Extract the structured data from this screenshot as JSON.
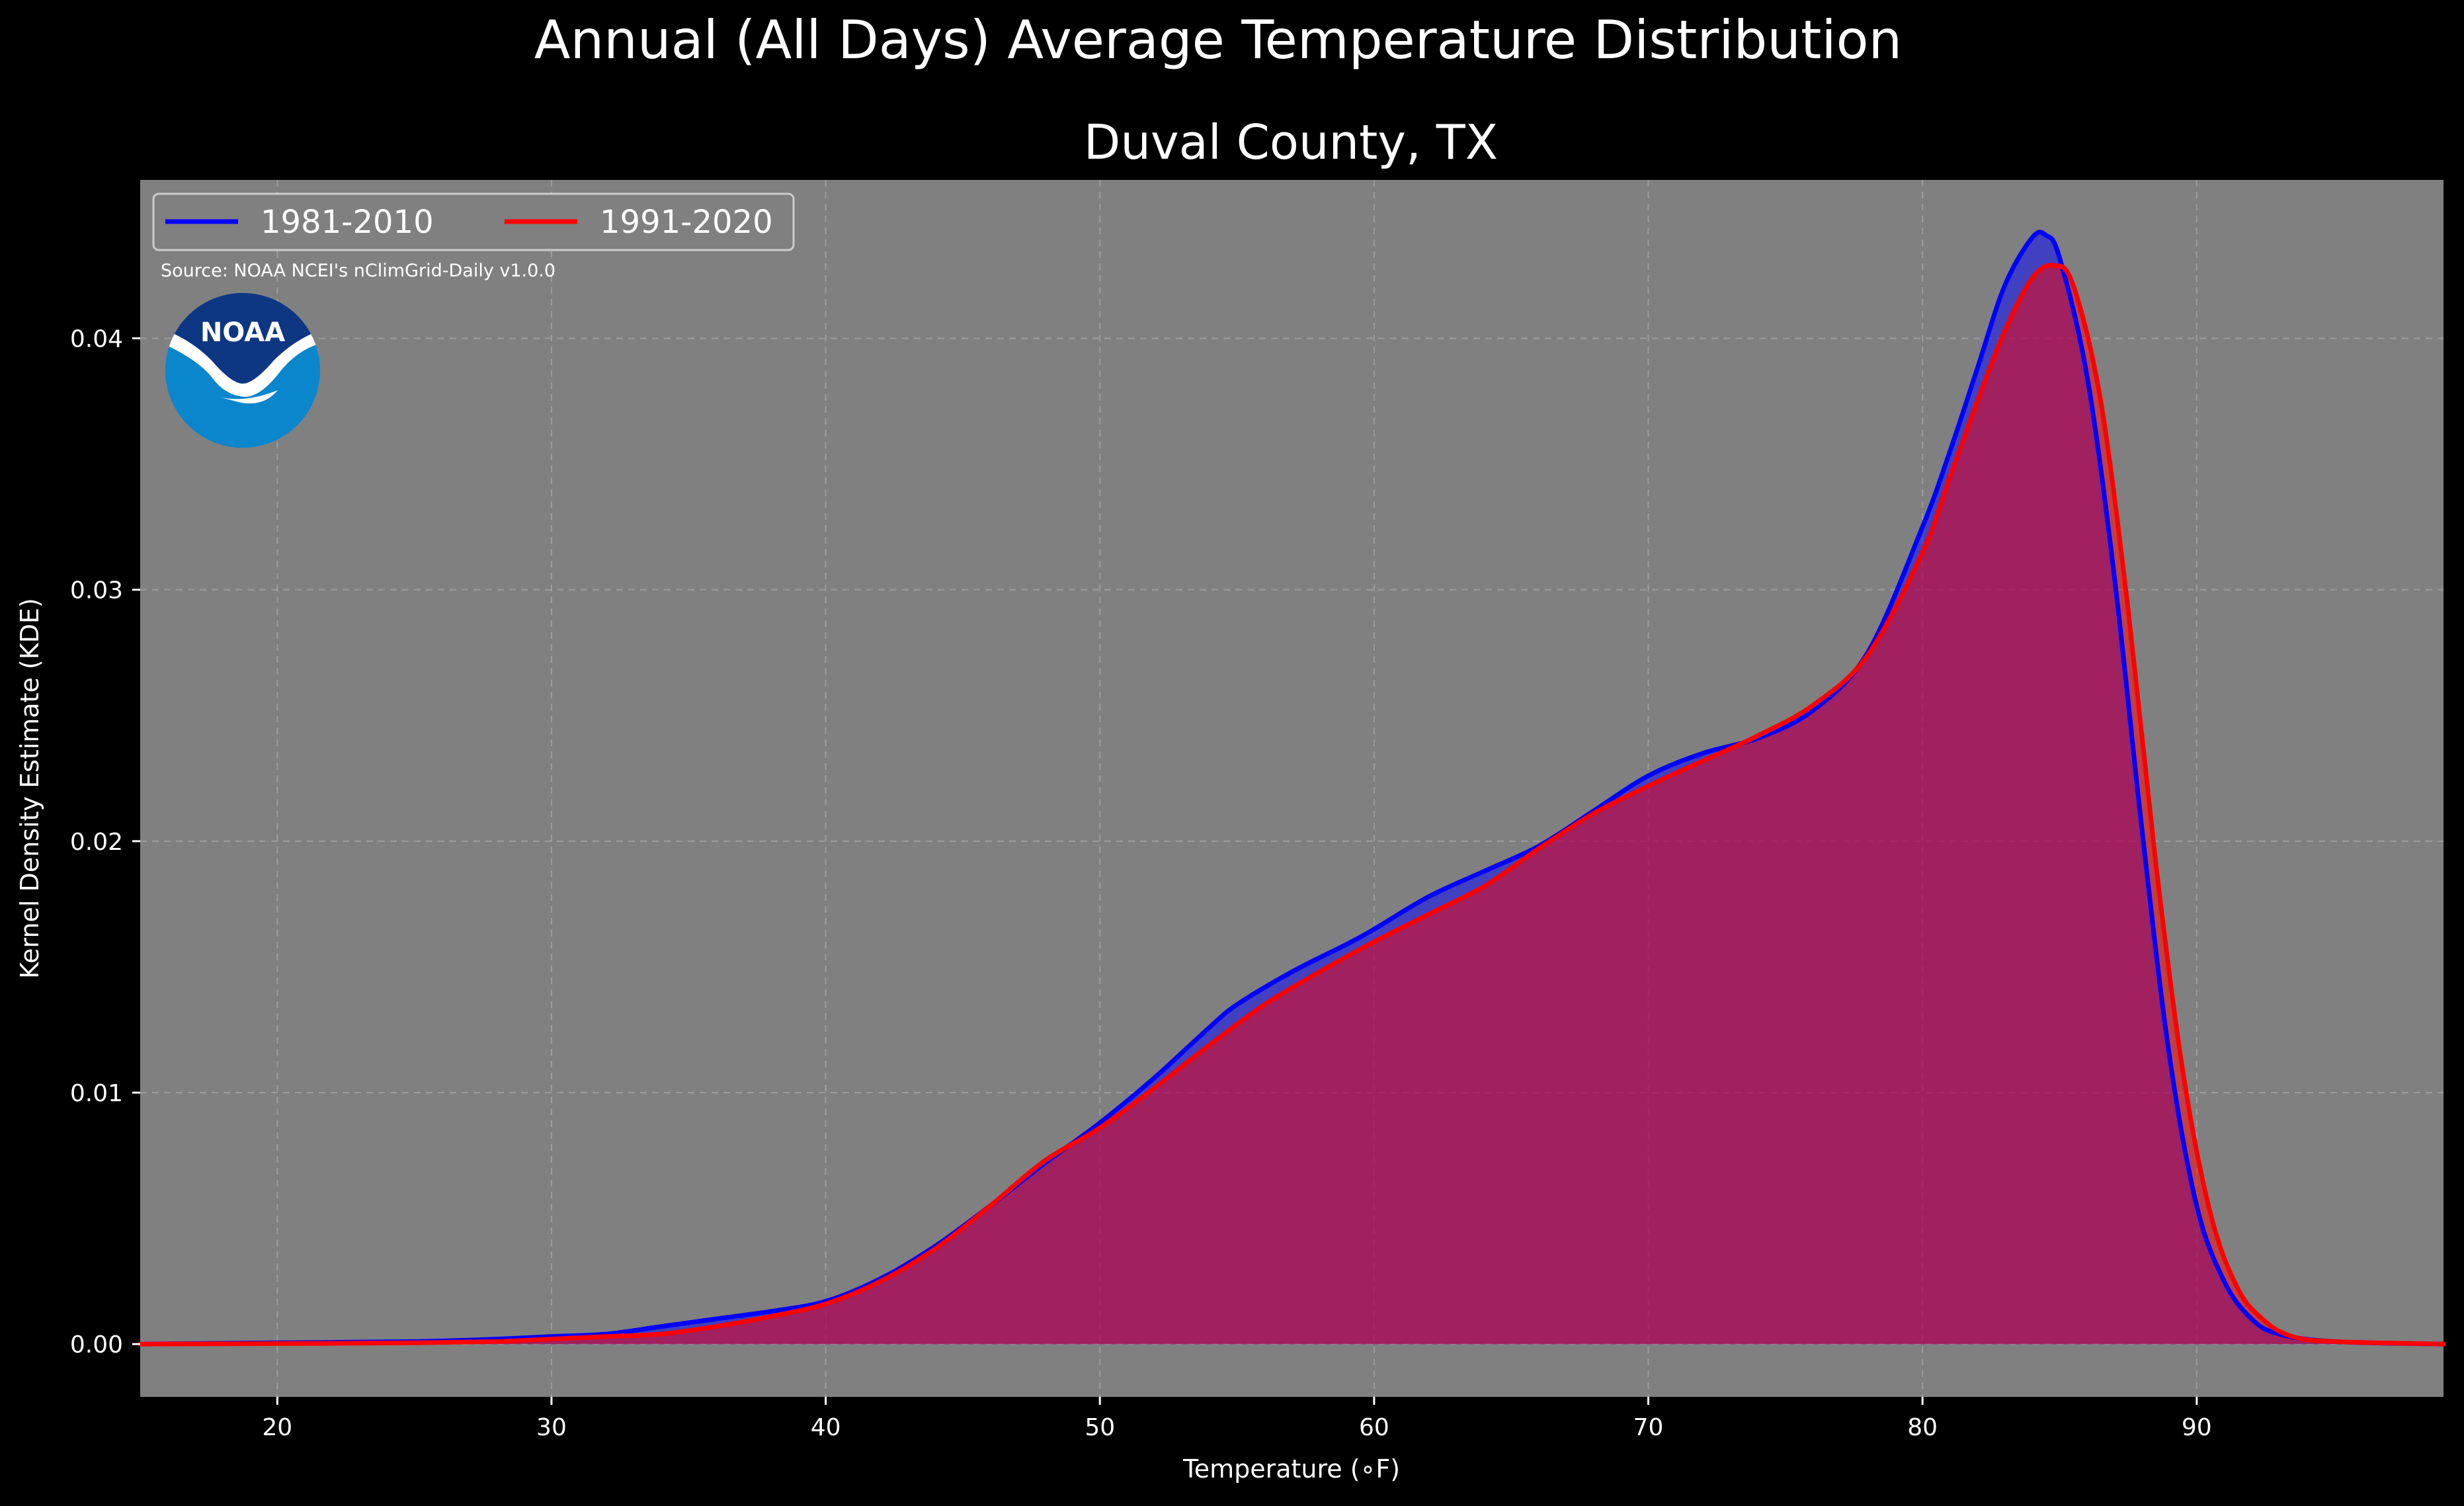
{
  "chart_data": {
    "type": "area",
    "title": "Annual (All Days) Average Temperature Distribution",
    "subtitle": "Duval County, TX",
    "xlabel": "Temperature (∘F)",
    "ylabel": "Kernel Density Estimate (KDE)",
    "xlim": [
      15,
      99
    ],
    "ylim": [
      -0.0021,
      0.0463
    ],
    "xticks": [
      20,
      30,
      40,
      50,
      60,
      70,
      80,
      90
    ],
    "yticks": [
      0.0,
      0.01,
      0.02,
      0.03,
      0.04
    ],
    "xtick_labels": [
      "20",
      "30",
      "40",
      "50",
      "60",
      "70",
      "80",
      "90"
    ],
    "ytick_labels": [
      "0.00",
      "0.01",
      "0.02",
      "0.03",
      "0.04"
    ],
    "grid": true,
    "legend_position": "top-left",
    "source_note": "Source: NOAA NCEI's nClimGrid-Daily v1.0.0",
    "logo_text": "NOAA",
    "colors": {
      "background": "#000000",
      "plot_background": "#808080",
      "text": "#ffffff"
    },
    "series": [
      {
        "name": "1981-2010",
        "color": "#0000ff",
        "points": [
          [
            15,
            0.0
          ],
          [
            20,
            5e-05
          ],
          [
            25,
            0.0001
          ],
          [
            28,
            0.0002
          ],
          [
            30,
            0.0003
          ],
          [
            32,
            0.0004
          ],
          [
            34,
            0.0007
          ],
          [
            36,
            0.001
          ],
          [
            38,
            0.0013
          ],
          [
            40,
            0.0017
          ],
          [
            42,
            0.0026
          ],
          [
            44,
            0.0039
          ],
          [
            46,
            0.0055
          ],
          [
            48,
            0.0072
          ],
          [
            50,
            0.0088
          ],
          [
            52,
            0.0106
          ],
          [
            54,
            0.0126
          ],
          [
            55,
            0.0135
          ],
          [
            57,
            0.0148
          ],
          [
            59,
            0.0159
          ],
          [
            60,
            0.0165
          ],
          [
            62,
            0.0178
          ],
          [
            64,
            0.0188
          ],
          [
            66,
            0.0198
          ],
          [
            68,
            0.0212
          ],
          [
            70,
            0.0226
          ],
          [
            72,
            0.0235
          ],
          [
            74,
            0.0241
          ],
          [
            76,
            0.0252
          ],
          [
            78,
            0.0275
          ],
          [
            80,
            0.0325
          ],
          [
            81,
            0.0355
          ],
          [
            82,
            0.0388
          ],
          [
            83,
            0.0421
          ],
          [
            84,
            0.044
          ],
          [
            84.5,
            0.0441
          ],
          [
            85,
            0.0432
          ],
          [
            86,
            0.0385
          ],
          [
            87,
            0.0305
          ],
          [
            88,
            0.0205
          ],
          [
            89,
            0.0115
          ],
          [
            90,
            0.0055
          ],
          [
            91,
            0.0025
          ],
          [
            92,
            0.001
          ],
          [
            93,
            0.0004
          ],
          [
            95,
            0.0001
          ],
          [
            99,
            0.0
          ]
        ]
      },
      {
        "name": "1991-2020",
        "color": "#ff0000",
        "points": [
          [
            15,
            0.0
          ],
          [
            20,
            2e-05
          ],
          [
            25,
            5e-05
          ],
          [
            28,
            0.0001
          ],
          [
            30,
            0.0002
          ],
          [
            32,
            0.0003
          ],
          [
            34,
            0.0004
          ],
          [
            36,
            0.0007
          ],
          [
            38,
            0.0011
          ],
          [
            40,
            0.0016
          ],
          [
            42,
            0.0025
          ],
          [
            44,
            0.0038
          ],
          [
            46,
            0.0055
          ],
          [
            48,
            0.0073
          ],
          [
            50,
            0.0086
          ],
          [
            52,
            0.0102
          ],
          [
            54,
            0.0119
          ],
          [
            56,
            0.0135
          ],
          [
            58,
            0.0148
          ],
          [
            60,
            0.016
          ],
          [
            62,
            0.0171
          ],
          [
            64,
            0.0182
          ],
          [
            66,
            0.0197
          ],
          [
            68,
            0.0211
          ],
          [
            70,
            0.0222
          ],
          [
            72,
            0.0232
          ],
          [
            74,
            0.0242
          ],
          [
            76,
            0.0254
          ],
          [
            78,
            0.0274
          ],
          [
            80,
            0.0315
          ],
          [
            81,
            0.0345
          ],
          [
            82,
            0.0375
          ],
          [
            83,
            0.0403
          ],
          [
            84,
            0.0424
          ],
          [
            84.8,
            0.0429
          ],
          [
            85.5,
            0.0421
          ],
          [
            86.5,
            0.0375
          ],
          [
            87.5,
            0.0292
          ],
          [
            88.5,
            0.0192
          ],
          [
            89.5,
            0.0108
          ],
          [
            90.5,
            0.0052
          ],
          [
            91.5,
            0.0022
          ],
          [
            92.5,
            0.0009
          ],
          [
            93.5,
            0.0003
          ],
          [
            95,
            0.0001
          ],
          [
            99,
            0.0
          ]
        ]
      }
    ]
  }
}
